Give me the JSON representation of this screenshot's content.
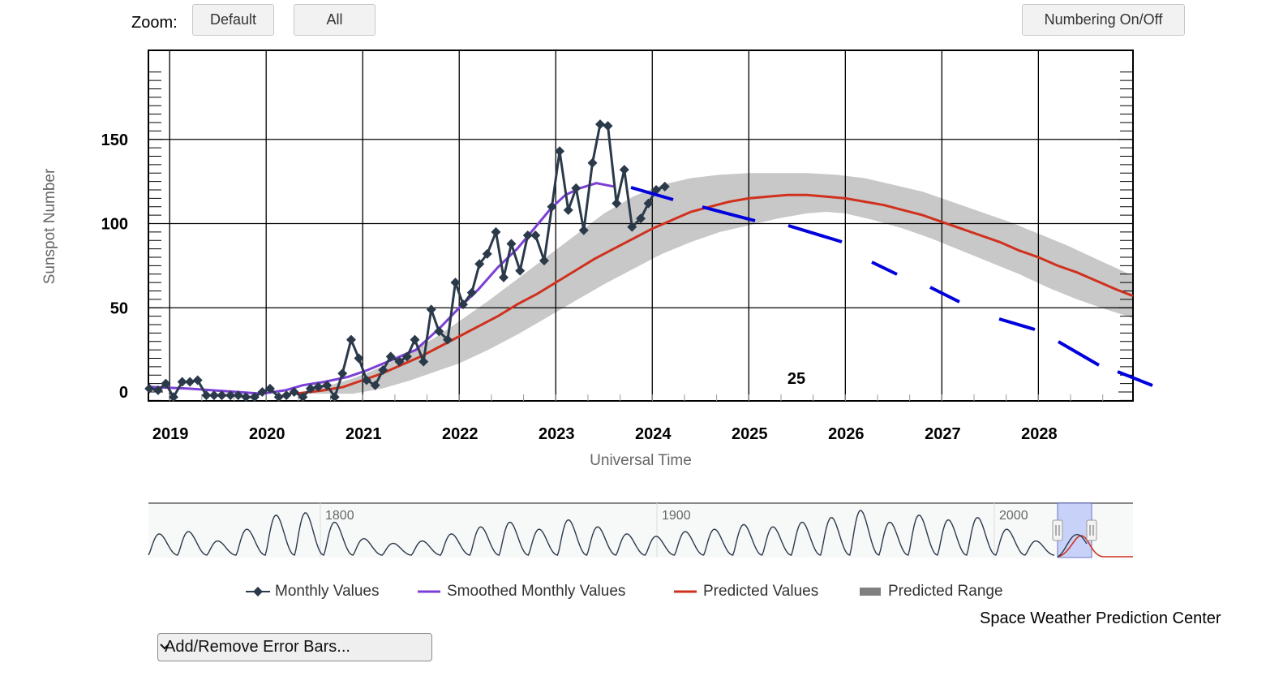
{
  "zoom": {
    "label": "Zoom:",
    "default_label": "Default",
    "all_label": "All"
  },
  "numbering_label": "Numbering On/Off",
  "chart_data": {
    "type": "line",
    "ylabel": "Sunspot Number",
    "xlabel": "Universal Time",
    "xlim": [
      2018.78,
      2028.98
    ],
    "ylim": [
      0,
      190
    ],
    "x_ticks": [
      "2019",
      "2020",
      "2021",
      "2022",
      "2023",
      "2024",
      "2025",
      "2026",
      "2027",
      "2028"
    ],
    "y_ticks": [
      "0",
      "50",
      "100",
      "150"
    ],
    "cycle_label": "25",
    "grid": true,
    "series": [
      {
        "name": "Monthly Values",
        "color": "#2b3a4a",
        "points": [
          [
            2018.79,
            2
          ],
          [
            2018.88,
            1
          ],
          [
            2018.96,
            5
          ],
          [
            2019.04,
            -3
          ],
          [
            2019.13,
            6
          ],
          [
            2019.21,
            6
          ],
          [
            2019.29,
            7
          ],
          [
            2019.38,
            -2
          ],
          [
            2019.46,
            -2
          ],
          [
            2019.54,
            -2
          ],
          [
            2019.63,
            -2
          ],
          [
            2019.71,
            -2
          ],
          [
            2019.79,
            -3
          ],
          [
            2019.88,
            -3
          ],
          [
            2019.96,
            0
          ],
          [
            2020.04,
            2
          ],
          [
            2020.13,
            -3
          ],
          [
            2020.21,
            -2
          ],
          [
            2020.29,
            0
          ],
          [
            2020.38,
            -3
          ],
          [
            2020.46,
            2
          ],
          [
            2020.54,
            3
          ],
          [
            2020.63,
            4
          ],
          [
            2020.71,
            -3
          ],
          [
            2020.79,
            11
          ],
          [
            2020.88,
            31
          ],
          [
            2020.96,
            20
          ],
          [
            2021.04,
            7
          ],
          [
            2021.13,
            4
          ],
          [
            2021.21,
            13
          ],
          [
            2021.29,
            21
          ],
          [
            2021.38,
            18
          ],
          [
            2021.46,
            21
          ],
          [
            2021.54,
            31
          ],
          [
            2021.63,
            18
          ],
          [
            2021.71,
            49
          ],
          [
            2021.79,
            36
          ],
          [
            2021.88,
            31
          ],
          [
            2021.96,
            65
          ],
          [
            2022.04,
            52
          ],
          [
            2022.13,
            59
          ],
          [
            2022.21,
            76
          ],
          [
            2022.29,
            82
          ],
          [
            2022.38,
            95
          ],
          [
            2022.46,
            68
          ],
          [
            2022.54,
            88
          ],
          [
            2022.63,
            72
          ],
          [
            2022.71,
            93
          ],
          [
            2022.79,
            93
          ],
          [
            2022.88,
            78
          ],
          [
            2022.96,
            110
          ],
          [
            2023.04,
            143
          ],
          [
            2023.13,
            108
          ],
          [
            2023.21,
            121
          ],
          [
            2023.29,
            96
          ],
          [
            2023.38,
            136
          ],
          [
            2023.46,
            159
          ],
          [
            2023.54,
            158
          ],
          [
            2023.63,
            112
          ],
          [
            2023.71,
            132
          ],
          [
            2023.79,
            98
          ],
          [
            2023.88,
            103
          ],
          [
            2023.96,
            112
          ],
          [
            2024.04,
            120
          ],
          [
            2024.13,
            122
          ]
        ]
      },
      {
        "name": "Smoothed Monthly Values",
        "color": "#7b3fd6",
        "points": [
          [
            2018.79,
            3
          ],
          [
            2019.2,
            2
          ],
          [
            2019.7,
            0
          ],
          [
            2019.95,
            -1
          ],
          [
            2020.2,
            1
          ],
          [
            2020.38,
            4
          ],
          [
            2020.6,
            6
          ],
          [
            2020.85,
            9
          ],
          [
            2021.05,
            13
          ],
          [
            2021.3,
            19
          ],
          [
            2021.55,
            25
          ],
          [
            2021.8,
            38
          ],
          [
            2022.0,
            50
          ],
          [
            2022.2,
            61
          ],
          [
            2022.4,
            74
          ],
          [
            2022.6,
            85
          ],
          [
            2022.82,
            100
          ],
          [
            2022.95,
            109
          ],
          [
            2023.1,
            117
          ],
          [
            2023.25,
            121
          ],
          [
            2023.42,
            124
          ],
          [
            2023.6,
            122
          ]
        ]
      },
      {
        "name": "Predicted Values",
        "color": "#d0311e",
        "points": [
          [
            2020.3,
            -1
          ],
          [
            2020.6,
            1
          ],
          [
            2020.8,
            3
          ],
          [
            2021.0,
            7
          ],
          [
            2021.2,
            11
          ],
          [
            2021.4,
            16
          ],
          [
            2021.6,
            21
          ],
          [
            2021.8,
            27
          ],
          [
            2022.0,
            33
          ],
          [
            2022.2,
            39
          ],
          [
            2022.4,
            45
          ],
          [
            2022.6,
            52
          ],
          [
            2022.8,
            58
          ],
          [
            2023.0,
            65
          ],
          [
            2023.2,
            72
          ],
          [
            2023.4,
            79
          ],
          [
            2023.6,
            85
          ],
          [
            2023.8,
            91
          ],
          [
            2024.0,
            97
          ],
          [
            2024.2,
            102
          ],
          [
            2024.4,
            107
          ],
          [
            2024.6,
            110
          ],
          [
            2024.8,
            113
          ],
          [
            2025.0,
            115
          ],
          [
            2025.2,
            116
          ],
          [
            2025.4,
            117
          ],
          [
            2025.6,
            117
          ],
          [
            2025.8,
            116
          ],
          [
            2026.0,
            115
          ],
          [
            2026.2,
            113
          ],
          [
            2026.4,
            111
          ],
          [
            2026.6,
            108
          ],
          [
            2026.8,
            105
          ],
          [
            2027.0,
            101
          ],
          [
            2027.2,
            97
          ],
          [
            2027.4,
            93
          ],
          [
            2027.6,
            89
          ],
          [
            2027.8,
            84
          ],
          [
            2028.0,
            80
          ],
          [
            2028.2,
            75
          ],
          [
            2028.4,
            71
          ],
          [
            2028.6,
            66
          ],
          [
            2028.8,
            61
          ],
          [
            2028.98,
            57
          ]
        ]
      },
      {
        "name": "Predicted Range",
        "color": "#c8c8c8",
        "upper": [
          [
            2020.3,
            -1
          ],
          [
            2020.6,
            3
          ],
          [
            2020.9,
            8
          ],
          [
            2021.2,
            15
          ],
          [
            2021.5,
            24
          ],
          [
            2021.8,
            34
          ],
          [
            2022.0,
            42
          ],
          [
            2022.3,
            54
          ],
          [
            2022.6,
            67
          ],
          [
            2022.9,
            80
          ],
          [
            2023.2,
            93
          ],
          [
            2023.5,
            106
          ],
          [
            2023.8,
            116
          ],
          [
            2024.1,
            123
          ],
          [
            2024.4,
            127
          ],
          [
            2024.7,
            129
          ],
          [
            2025.0,
            130
          ],
          [
            2025.3,
            130
          ],
          [
            2025.6,
            130
          ],
          [
            2025.9,
            129
          ],
          [
            2026.2,
            127
          ],
          [
            2026.5,
            123
          ],
          [
            2026.8,
            119
          ],
          [
            2027.1,
            113
          ],
          [
            2027.4,
            107
          ],
          [
            2027.7,
            101
          ],
          [
            2028.0,
            94
          ],
          [
            2028.3,
            87
          ],
          [
            2028.6,
            79
          ],
          [
            2028.98,
            69
          ]
        ],
        "lower": [
          [
            2020.3,
            -1
          ],
          [
            2020.6,
            -1
          ],
          [
            2020.9,
            -1
          ],
          [
            2021.2,
            2
          ],
          [
            2021.5,
            7
          ],
          [
            2021.8,
            13
          ],
          [
            2022.0,
            17
          ],
          [
            2022.3,
            25
          ],
          [
            2022.6,
            34
          ],
          [
            2022.9,
            44
          ],
          [
            2023.2,
            54
          ],
          [
            2023.5,
            64
          ],
          [
            2023.8,
            73
          ],
          [
            2024.1,
            82
          ],
          [
            2024.4,
            89
          ],
          [
            2024.7,
            95
          ],
          [
            2025.0,
            99
          ],
          [
            2025.3,
            103
          ],
          [
            2025.6,
            106
          ],
          [
            2025.8,
            107
          ],
          [
            2026.0,
            106
          ],
          [
            2026.3,
            102
          ],
          [
            2026.6,
            97
          ],
          [
            2026.9,
            91
          ],
          [
            2027.2,
            84
          ],
          [
            2027.5,
            77
          ],
          [
            2027.8,
            70
          ],
          [
            2028.1,
            62
          ],
          [
            2028.4,
            55
          ],
          [
            2028.7,
            49
          ],
          [
            2028.98,
            44
          ]
        ]
      }
    ]
  },
  "navigator": {
    "labels": [
      "1800",
      "1900",
      "2000"
    ]
  },
  "legend": [
    "Monthly Values",
    "Smoothed Monthly Values",
    "Predicted Values",
    "Predicted Range"
  ],
  "credit": "Space Weather Prediction Center",
  "error_bars_select": "Add/Remove Error Bars..."
}
